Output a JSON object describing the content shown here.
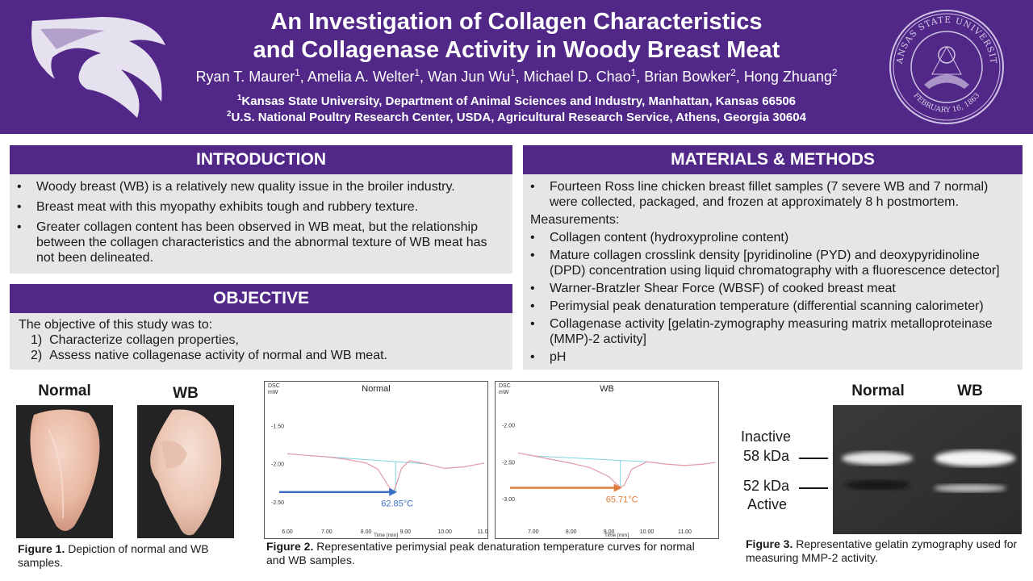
{
  "header": {
    "title_line1": "An Investigation of Collagen Characteristics",
    "title_line2": "and Collagenase Activity in Woody Breast Meat",
    "authors": [
      {
        "name": "Ryan T. Maurer",
        "sup": "1"
      },
      {
        "name": "Amelia A. Welter",
        "sup": "1"
      },
      {
        "name": "Wan Jun Wu",
        "sup": "1"
      },
      {
        "name": "Michael D. Chao",
        "sup": "1"
      },
      {
        "name": "Brian Bowker",
        "sup": "2"
      },
      {
        "name": "Hong Zhuang",
        "sup": "2"
      }
    ],
    "affiliation1_sup": "1",
    "affiliation1": "Kansas State University, Department of Animal Sciences and Industry, Manhattan, Kansas 66506",
    "affiliation2_sup": "2",
    "affiliation2": "U.S. National Poultry Research Center, USDA, Agricultural Research Service, Athens, Georgia 30604",
    "seal_text_top": "KANSAS STATE UNIVERSITY",
    "seal_text_bottom": "FEBRUARY 16, 1863",
    "colors": {
      "purple": "#512888",
      "panel": "#e6e6e6"
    }
  },
  "introduction": {
    "heading": "INTRODUCTION",
    "bullets": [
      "Woody breast (WB) is a relatively new quality issue in the broiler industry.",
      "Breast meat with this myopathy exhibits tough and rubbery texture.",
      "Greater collagen content has been observed in WB meat, but the relationship between the collagen characteristics and the abnormal texture of WB meat has not been delineated."
    ]
  },
  "objective": {
    "heading": "OBJECTIVE",
    "lead": "The objective of this study was to:",
    "items": [
      {
        "num": "1)",
        "text": "Characterize collagen properties,"
      },
      {
        "num": "2)",
        "text": "Assess native collagenase activity of normal and WB meat."
      }
    ]
  },
  "methods": {
    "heading": "MATERIALS & METHODS",
    "intro_bullet": "Fourteen Ross line chicken breast fillet samples (7 severe WB and 7 normal) were collected, packaged, and frozen at approximately 8 h postmortem.",
    "measurements_label": "Measurements:",
    "bullets": [
      "Collagen content (hydroxyproline content)",
      "Mature collagen crosslink density [pyridinoline (PYD) and deoxypyridinoline (DPD) concentration using liquid chromatography with a fluorescence detector]",
      "Warner-Bratzler Shear Force (WBSF) of cooked breast meat",
      "Perimysial peak denaturation temperature (differential scanning calorimeter)",
      "Collagenase activity [gelatin-zymography measuring matrix metalloproteinase (MMP)-2 activity]",
      "pH"
    ]
  },
  "figure1": {
    "label_normal": "Normal",
    "label_wb": "WB",
    "caption_bold": "Figure 1.",
    "caption_text": " Depiction of normal and WB samples."
  },
  "figure2": {
    "caption_bold": "Figure 2.",
    "caption_text": " Representative perimysial peak denaturation temperature curves for normal and WB samples."
  },
  "figure3": {
    "label_normal": "Normal",
    "label_wb": "WB",
    "inactive_word": "Inactive",
    "inactive_kda": "58 kDa",
    "active_kda": "52 kDa",
    "active_word": "Active",
    "caption_bold": "Figure 3.",
    "caption_text": " Representative gelatin zymography used for measuring MMP-2 activity."
  },
  "chart_data": [
    {
      "type": "line",
      "title": "Normal",
      "y_unit_line1": "DSC",
      "y_unit_line2": "mW",
      "xlabel": "Time [min]",
      "x_ticks": [
        "6.00",
        "7.00",
        "8.00",
        "9.00",
        "10.00",
        "11.00"
      ],
      "y_ticks": [
        "-1.50",
        "-2.00",
        "-2.50"
      ],
      "xlim": [
        6.0,
        11.0
      ],
      "ylim": [
        -2.85,
        -1.05
      ],
      "series": [
        {
          "x": [
            6.0,
            6.5,
            7.0,
            7.5,
            8.0,
            8.3,
            8.6,
            8.7,
            8.75,
            8.9,
            9.1,
            9.5,
            10.0,
            10.5,
            11.0
          ],
          "y": [
            -1.87,
            -1.89,
            -1.91,
            -1.94,
            -1.99,
            -2.07,
            -2.32,
            -2.36,
            -2.3,
            -2.06,
            -1.96,
            -2.0,
            -2.06,
            -2.04,
            -1.99
          ]
        }
      ],
      "baseline": {
        "x": [
          6.5,
          9.5
        ],
        "y": [
          -1.89,
          -2.0
        ]
      },
      "peak_x": 8.75,
      "peak_label": "62.85°C",
      "arrow_color": "#3a6fc4"
    },
    {
      "type": "line",
      "title": "WB",
      "y_unit_line1": "DSC",
      "y_unit_line2": "mW",
      "xlabel": "Time [min]",
      "x_ticks": [
        "7.00",
        "8.00",
        "9.00",
        "10.00",
        "11.00"
      ],
      "y_ticks": [
        "-2.00",
        "-2.50",
        "-3.00"
      ],
      "xlim": [
        6.6,
        11.8
      ],
      "ylim": [
        -3.4,
        -1.55
      ],
      "series": [
        {
          "x": [
            6.6,
            7.0,
            7.5,
            8.0,
            8.5,
            9.0,
            9.2,
            9.3,
            9.4,
            9.6,
            10.0,
            10.5,
            11.0,
            11.5,
            11.8
          ],
          "y": [
            -2.38,
            -2.42,
            -2.47,
            -2.52,
            -2.58,
            -2.7,
            -2.8,
            -2.84,
            -2.82,
            -2.6,
            -2.5,
            -2.53,
            -2.55,
            -2.53,
            -2.51
          ]
        }
      ],
      "baseline": {
        "x": [
          7.0,
          10.0
        ],
        "y": [
          -2.42,
          -2.5
        ]
      },
      "peak_x": 9.3,
      "peak_label": "65.71°C",
      "arrow_color": "#e07b39"
    }
  ]
}
